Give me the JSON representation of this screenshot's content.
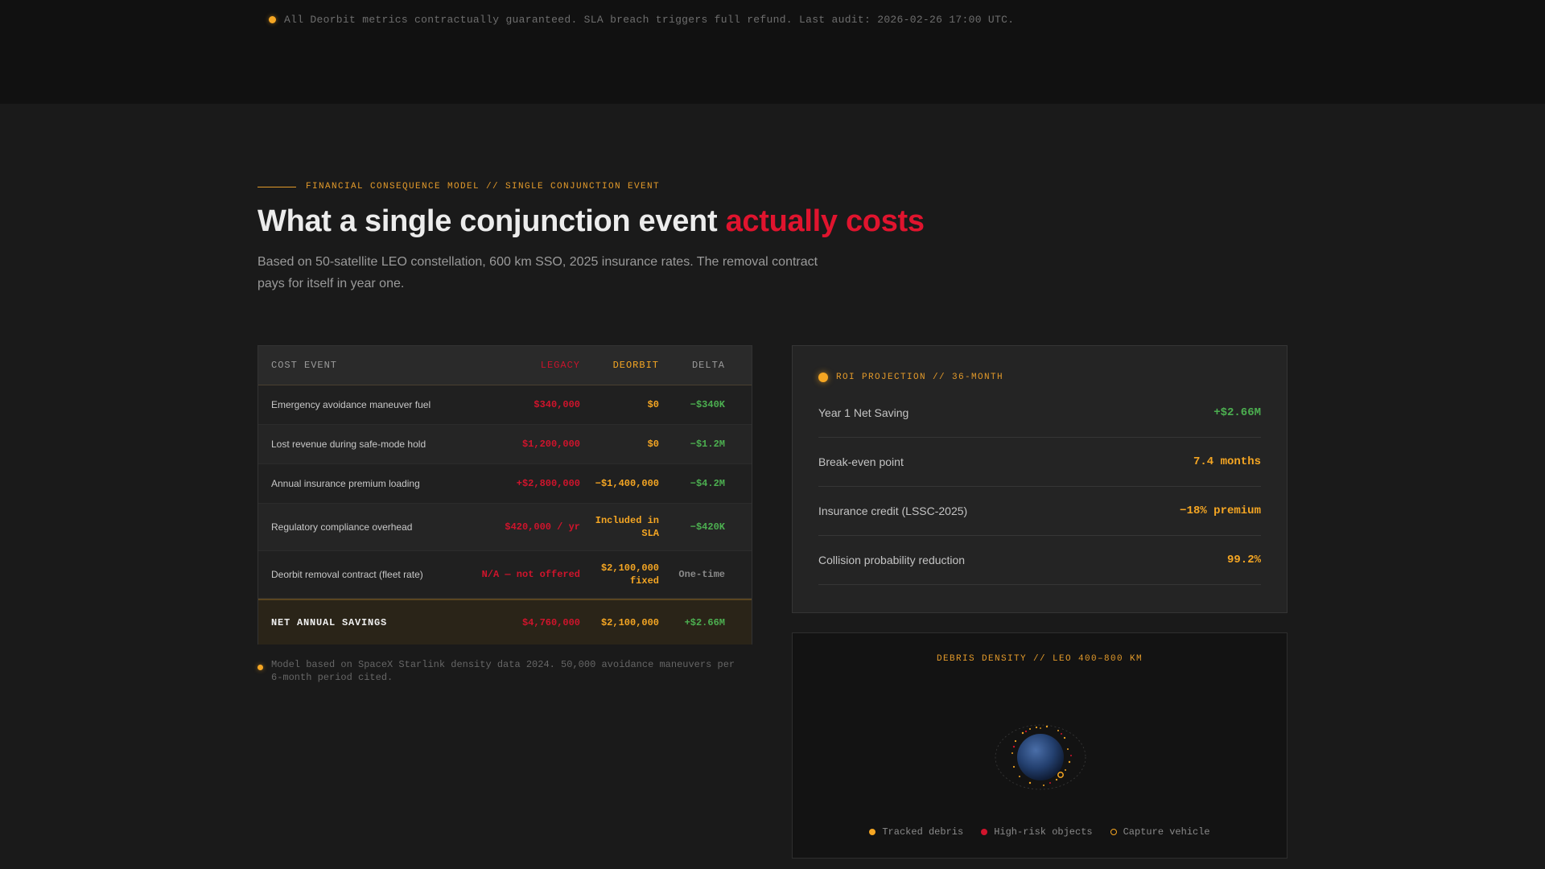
{
  "banner": {
    "text": "All Deorbit metrics contractually guaranteed. SLA breach triggers full refund. Last audit: 2026-02-26 17:00 UTC."
  },
  "section": {
    "eyebrow": "FINANCIAL CONSEQUENCE MODEL // SINGLE CONJUNCTION EVENT",
    "title_main": "What a single conjunction event ",
    "title_accent": "actually costs",
    "subtitle": "Based on 50-satellite LEO constellation, 600 km SSO, 2025 insurance rates. The removal contract pays for itself in year one."
  },
  "cost_table": {
    "headers": {
      "event": "COST EVENT",
      "legacy": "LEGACY",
      "deorbit": "DEORBIT",
      "delta": "DELTA"
    },
    "rows": [
      {
        "event": "Emergency avoidance maneuver fuel",
        "legacy": "$340,000",
        "deorbit": "$0",
        "delta": "−$340K"
      },
      {
        "event": "Lost revenue during safe-mode hold",
        "legacy": "$1,200,000",
        "deorbit": "$0",
        "delta": "−$1.2M"
      },
      {
        "event": "Annual insurance premium loading",
        "legacy": "+$2,800,000",
        "deorbit": "−$1,400,000",
        "delta": "−$4.2M"
      },
      {
        "event": "Regulatory compliance overhead",
        "legacy": "$420,000 / yr",
        "deorbit": "Included in SLA",
        "delta": "−$420K"
      },
      {
        "event": "Deorbit removal contract (fleet rate)",
        "legacy": "N/A — not offered",
        "deorbit": "$2,100,000 fixed",
        "delta": "One-time"
      }
    ],
    "total": {
      "event": "NET ANNUAL SAVINGS",
      "legacy": "$4,760,000",
      "deorbit": "$2,100,000",
      "delta": "+$2.66M"
    },
    "footnote": "Model based on SpaceX Starlink density data 2024. 50,000 avoidance maneuvers per 6-month period cited."
  },
  "roi": {
    "title": "ROI PROJECTION // 36-MONTH",
    "rows": [
      {
        "label": "Year 1 Net Saving",
        "value": "+$2.66M"
      },
      {
        "label": "Break-even point",
        "value": "7.4 months"
      },
      {
        "label": "Insurance credit (LSSC-2025)",
        "value": "−18% premium"
      },
      {
        "label": "Collision probability reduction",
        "value": "99.2%"
      }
    ]
  },
  "density": {
    "title": "DEBRIS DENSITY // LEO 400–800 KM",
    "legend": [
      {
        "label": "Tracked debris"
      },
      {
        "label": "High-risk objects"
      },
      {
        "label": "Capture vehicle"
      }
    ]
  },
  "colors": {
    "amber": "#f5a623",
    "red": "#e0142e",
    "green": "#4caf50"
  }
}
